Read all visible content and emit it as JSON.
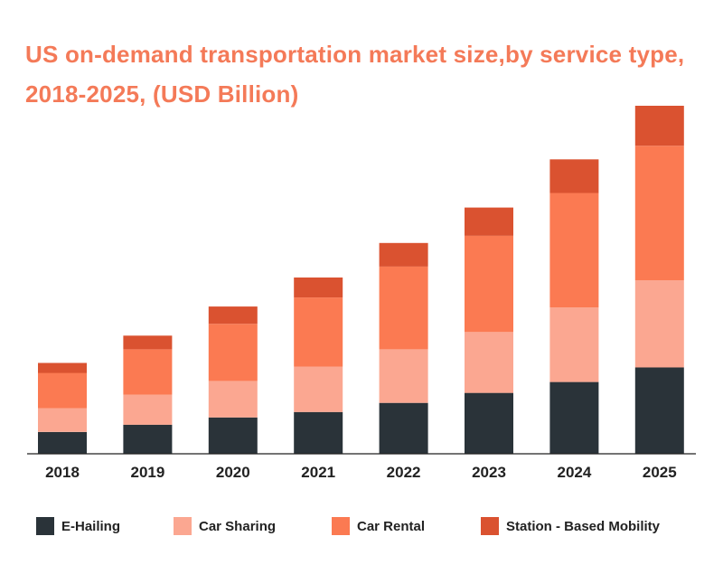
{
  "chart_data": {
    "type": "bar",
    "stacked": true,
    "title": "US on-demand transportation market size,by service type, 2018-2025, (USD Billion)",
    "xlabel": "",
    "ylabel": "",
    "categories": [
      "2018",
      "2019",
      "2020",
      "2021",
      "2022",
      "2023",
      "2024",
      "2025"
    ],
    "ylim": [
      0,
      38
    ],
    "grid": false,
    "legend_position": "bottom",
    "series": [
      {
        "name": "E-Hailing",
        "color": "#2a3339",
        "values": [
          2.4,
          3.2,
          4.0,
          4.6,
          5.6,
          6.7,
          7.9,
          9.5
        ]
      },
      {
        "name": "Car Sharing",
        "color": "#fba791",
        "values": [
          2.6,
          3.3,
          4.0,
          5.0,
          5.9,
          6.7,
          8.2,
          9.6
        ]
      },
      {
        "name": "Car Rental",
        "color": "#fb7a52",
        "values": [
          3.9,
          5.0,
          6.3,
          7.6,
          9.1,
          10.6,
          12.6,
          14.8
        ]
      },
      {
        "name": "Station - Based Mobility",
        "color": "#da5230",
        "values": [
          1.1,
          1.5,
          1.9,
          2.2,
          2.6,
          3.1,
          3.7,
          4.4
        ]
      }
    ]
  }
}
